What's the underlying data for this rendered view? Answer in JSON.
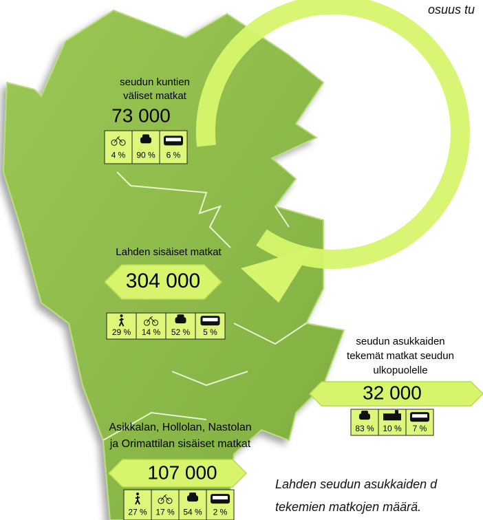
{
  "corner_note": "osuus tu",
  "groups": [
    {
      "label": [
        "seudun kuntien",
        "väliset matkat"
      ],
      "total": "73 000",
      "shares": [
        "4 %",
        "90 %",
        "6 %"
      ]
    },
    {
      "label": [
        "Lahden sisäiset matkat"
      ],
      "total": "304 000",
      "shares": [
        "29 %",
        "14 %",
        "52 %",
        "5 %"
      ]
    },
    {
      "label": [
        "seudun asukkaiden",
        "tekemät matkat seudun",
        "ulkopuolelle"
      ],
      "total": "32  000",
      "shares": [
        "83 %",
        "10 %",
        "7 %"
      ]
    },
    {
      "label": [
        "Asikkalan, Hollolan, Nastolan",
        "ja Orimattilan sisäiset matkat"
      ],
      "total": "107 000",
      "shares": [
        "27 %",
        "17 %",
        "54 %",
        "2 %"
      ]
    }
  ],
  "caption": [
    "Lahden seudun asukkaiden d",
    "tekemien matkojen määrä."
  ]
}
